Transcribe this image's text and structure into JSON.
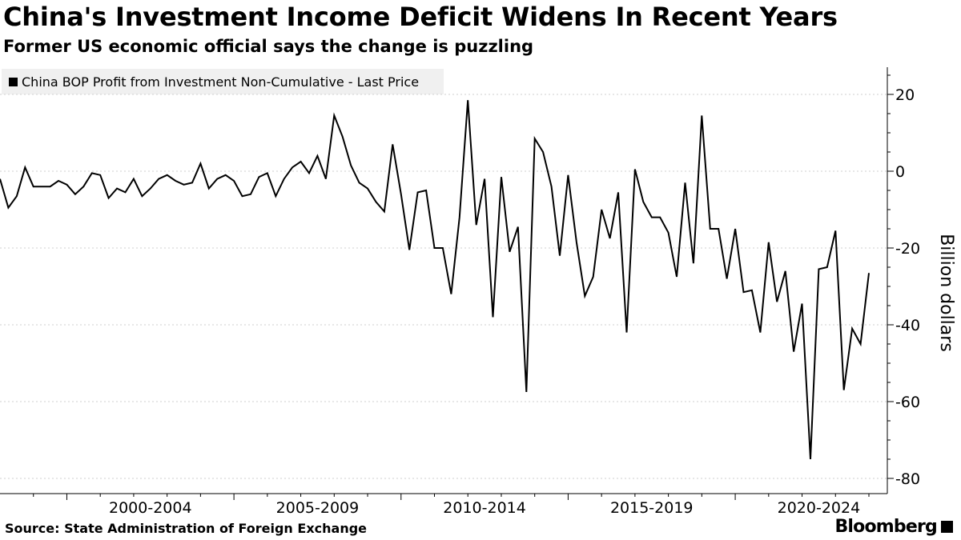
{
  "header": {
    "title": "China's Investment Income Deficit Widens In Recent Years",
    "subtitle": "Former US economic official says the change is puzzling"
  },
  "footer": {
    "source": "Source: State Administration of Foreign Exchange",
    "brand": "Bloomberg"
  },
  "colors": {
    "line": "#000000",
    "grid": "#cfcfcf",
    "legend_bg": "#f0f0f0"
  },
  "chart_data": {
    "type": "line",
    "title": "China's Investment Income Deficit Widens In Recent Years",
    "subtitle": "Former US economic official says the change is puzzling",
    "legend": [
      "China BOP Profit from Investment Non-Cumulative - Last Price"
    ],
    "legend_position": "top-left",
    "xlabel": "",
    "ylabel": "Billion dollars",
    "y_axis_side": "right",
    "ylim": [
      -85,
      28
    ],
    "yticks": [
      20,
      0,
      -20,
      -40,
      -60,
      -80
    ],
    "x_tick_labels": [
      "2000-2004",
      "2005-2009",
      "2010-2014",
      "2015-2019",
      "2020-2024"
    ],
    "grid": "horizontal dashed",
    "series": [
      {
        "name": "China BOP Profit from Investment Non-Cumulative - Last Price",
        "frequency": "quarterly",
        "start": "1998 Q1",
        "values": [
          -2,
          -9.5,
          -6.5,
          1,
          -4,
          -4,
          -4,
          -2.5,
          -3.5,
          -6,
          -4,
          -0.5,
          -1,
          -7,
          -4.5,
          -5.5,
          -2,
          -6.5,
          -4.5,
          -2,
          -1,
          -2.5,
          -3.5,
          -3,
          2,
          -4.5,
          -2,
          -1,
          -2.5,
          -6.5,
          -6,
          -1.5,
          -0.5,
          -6.5,
          -2,
          1,
          2.5,
          -0.5,
          4,
          -2,
          14.5,
          9,
          1.5,
          -3,
          -4.5,
          -8,
          -10.5,
          7,
          -6,
          -20.5,
          -5.5,
          -5,
          -20,
          -20,
          -32,
          -12,
          18.5,
          -14,
          -2,
          -38,
          -1.5,
          -21,
          -14.5,
          -57.5,
          8.5,
          5,
          -4,
          -22,
          -1,
          -18.5,
          -32.5,
          -27.5,
          -10,
          -17.5,
          -5.5,
          -42,
          0.5,
          -8,
          -12,
          -12,
          -16,
          -27.5,
          -3,
          -24,
          14.5,
          -15,
          -15,
          -28,
          -15,
          -31.5,
          -31,
          -42,
          -18.5,
          -34,
          -26,
          -47,
          -34.5,
          -75,
          -25.5,
          -25,
          -15.5,
          -57,
          -41,
          -45,
          -26.5
        ]
      }
    ]
  }
}
